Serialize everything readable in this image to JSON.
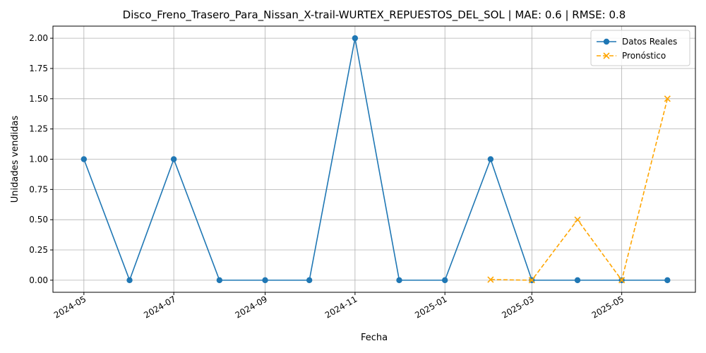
{
  "chart_data": {
    "type": "line",
    "title": "Disco_Freno_Trasero_Para_Nissan_X-trail-WURTEX_REPUESTOS_DEL_SOL | MAE: 0.6 | RMSE: 0.8",
    "xlabel": "Fecha",
    "ylabel": "Unidades vendidas",
    "ylim": [
      -0.1,
      2.1
    ],
    "yticks": [
      0.0,
      0.25,
      0.5,
      0.75,
      1.0,
      1.25,
      1.5,
      1.75,
      2.0
    ],
    "ytick_labels": [
      "0.00",
      "0.25",
      "0.50",
      "0.75",
      "1.00",
      "1.25",
      "1.50",
      "1.75",
      "2.00"
    ],
    "xlim": [
      "2024-04-10",
      "2025-06-20"
    ],
    "xticks": [
      "2024-05-01",
      "2024-07-01",
      "2024-09-01",
      "2024-11-01",
      "2025-01-01",
      "2025-03-01",
      "2025-05-01"
    ],
    "xtick_labels": [
      "2024-05",
      "2024-07",
      "2024-09",
      "2024-11",
      "2025-01",
      "2025-03",
      "2025-05"
    ],
    "grid": true,
    "legend_position": "top-right",
    "series": [
      {
        "name": "Datos Reales",
        "color": "#1f77b4",
        "style": "solid",
        "marker": "circle",
        "x": [
          "2024-05-01",
          "2024-06-01",
          "2024-07-01",
          "2024-08-01",
          "2024-09-01",
          "2024-10-01",
          "2024-11-01",
          "2024-12-01",
          "2025-01-01",
          "2025-02-01",
          "2025-03-01",
          "2025-04-01",
          "2025-05-01",
          "2025-06-01"
        ],
        "values": [
          1,
          0,
          1,
          0,
          0,
          0,
          2,
          0,
          0,
          1,
          0,
          0,
          0,
          0
        ]
      },
      {
        "name": "Pronóstico",
        "color": "#ffa500",
        "style": "dashed",
        "marker": "x",
        "x": [
          "2025-02-01",
          "2025-03-01",
          "2025-04-01",
          "2025-05-01",
          "2025-06-01"
        ],
        "values": [
          0.005,
          0.0,
          0.5,
          0.0,
          1.5
        ]
      }
    ]
  }
}
